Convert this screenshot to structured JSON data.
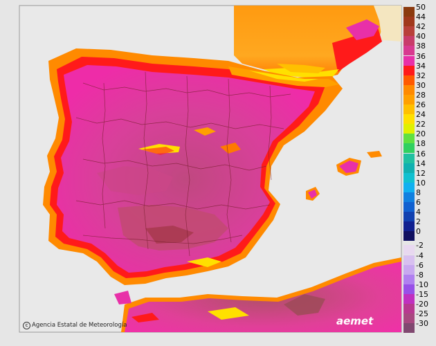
{
  "map": {
    "background_color": "#e6e6e6",
    "sea_color": "#e9e9e9",
    "land_colors": {
      "hot_core": "#d0407a",
      "hot_mid": "#e0329e",
      "hot_bright": "#f02aa8",
      "band_red": "#ff1a1a",
      "band_orange": "#ff7a00",
      "band_light_orange": "#ffa020",
      "band_yellow": "#ffe000",
      "dark_hot": "#9a3a4a",
      "france_orange": "#ff9a1a"
    }
  },
  "legend": {
    "items": [
      {
        "label": "50",
        "color": "#8b3a0e"
      },
      {
        "label": "44",
        "color": "#a0381c"
      },
      {
        "label": "42",
        "color": "#b8403a"
      },
      {
        "label": "40",
        "color": "#c83c6a"
      },
      {
        "label": "38",
        "color": "#d83a90"
      },
      {
        "label": "36",
        "color": "#e830a8"
      },
      {
        "label": "34",
        "color": "#ff1a1a"
      },
      {
        "label": "32",
        "color": "#ff5a00"
      },
      {
        "label": "30",
        "color": "#ff8a00"
      },
      {
        "label": "28",
        "color": "#ffa000"
      },
      {
        "label": "26",
        "color": "#ffc000"
      },
      {
        "label": "24",
        "color": "#ffe000"
      },
      {
        "label": "22",
        "color": "#e0f000"
      },
      {
        "label": "20",
        "color": "#60e040"
      },
      {
        "label": "18",
        "color": "#30d060"
      },
      {
        "label": "16",
        "color": "#20c0a0"
      },
      {
        "label": "14",
        "color": "#10b0b0"
      },
      {
        "label": "12",
        "color": "#10c0d0"
      },
      {
        "label": "10",
        "color": "#10b0f0"
      },
      {
        "label": "8",
        "color": "#1080e0"
      },
      {
        "label": "6",
        "color": "#1060d0"
      },
      {
        "label": "4",
        "color": "#1040b0"
      },
      {
        "label": "2",
        "color": "#102090"
      },
      {
        "label": "0",
        "color": "#101060"
      },
      {
        "label": "-2",
        "color": "#e8d8f0"
      },
      {
        "label": "-4",
        "color": "#d8c0f0"
      },
      {
        "label": "-6",
        "color": "#c8a8f0"
      },
      {
        "label": "-8",
        "color": "#b080f0"
      },
      {
        "label": "-10",
        "color": "#9850e8"
      },
      {
        "label": "-15",
        "color": "#c030c0"
      },
      {
        "label": "-20",
        "color": "#b83890"
      },
      {
        "label": "-25",
        "color": "#a84880"
      },
      {
        "label": "-30",
        "color": "#804870"
      }
    ]
  },
  "credit": {
    "agency": "Agencia Estatal de Meteorología",
    "logo": "aemet",
    "icon": "copyright-icon"
  }
}
